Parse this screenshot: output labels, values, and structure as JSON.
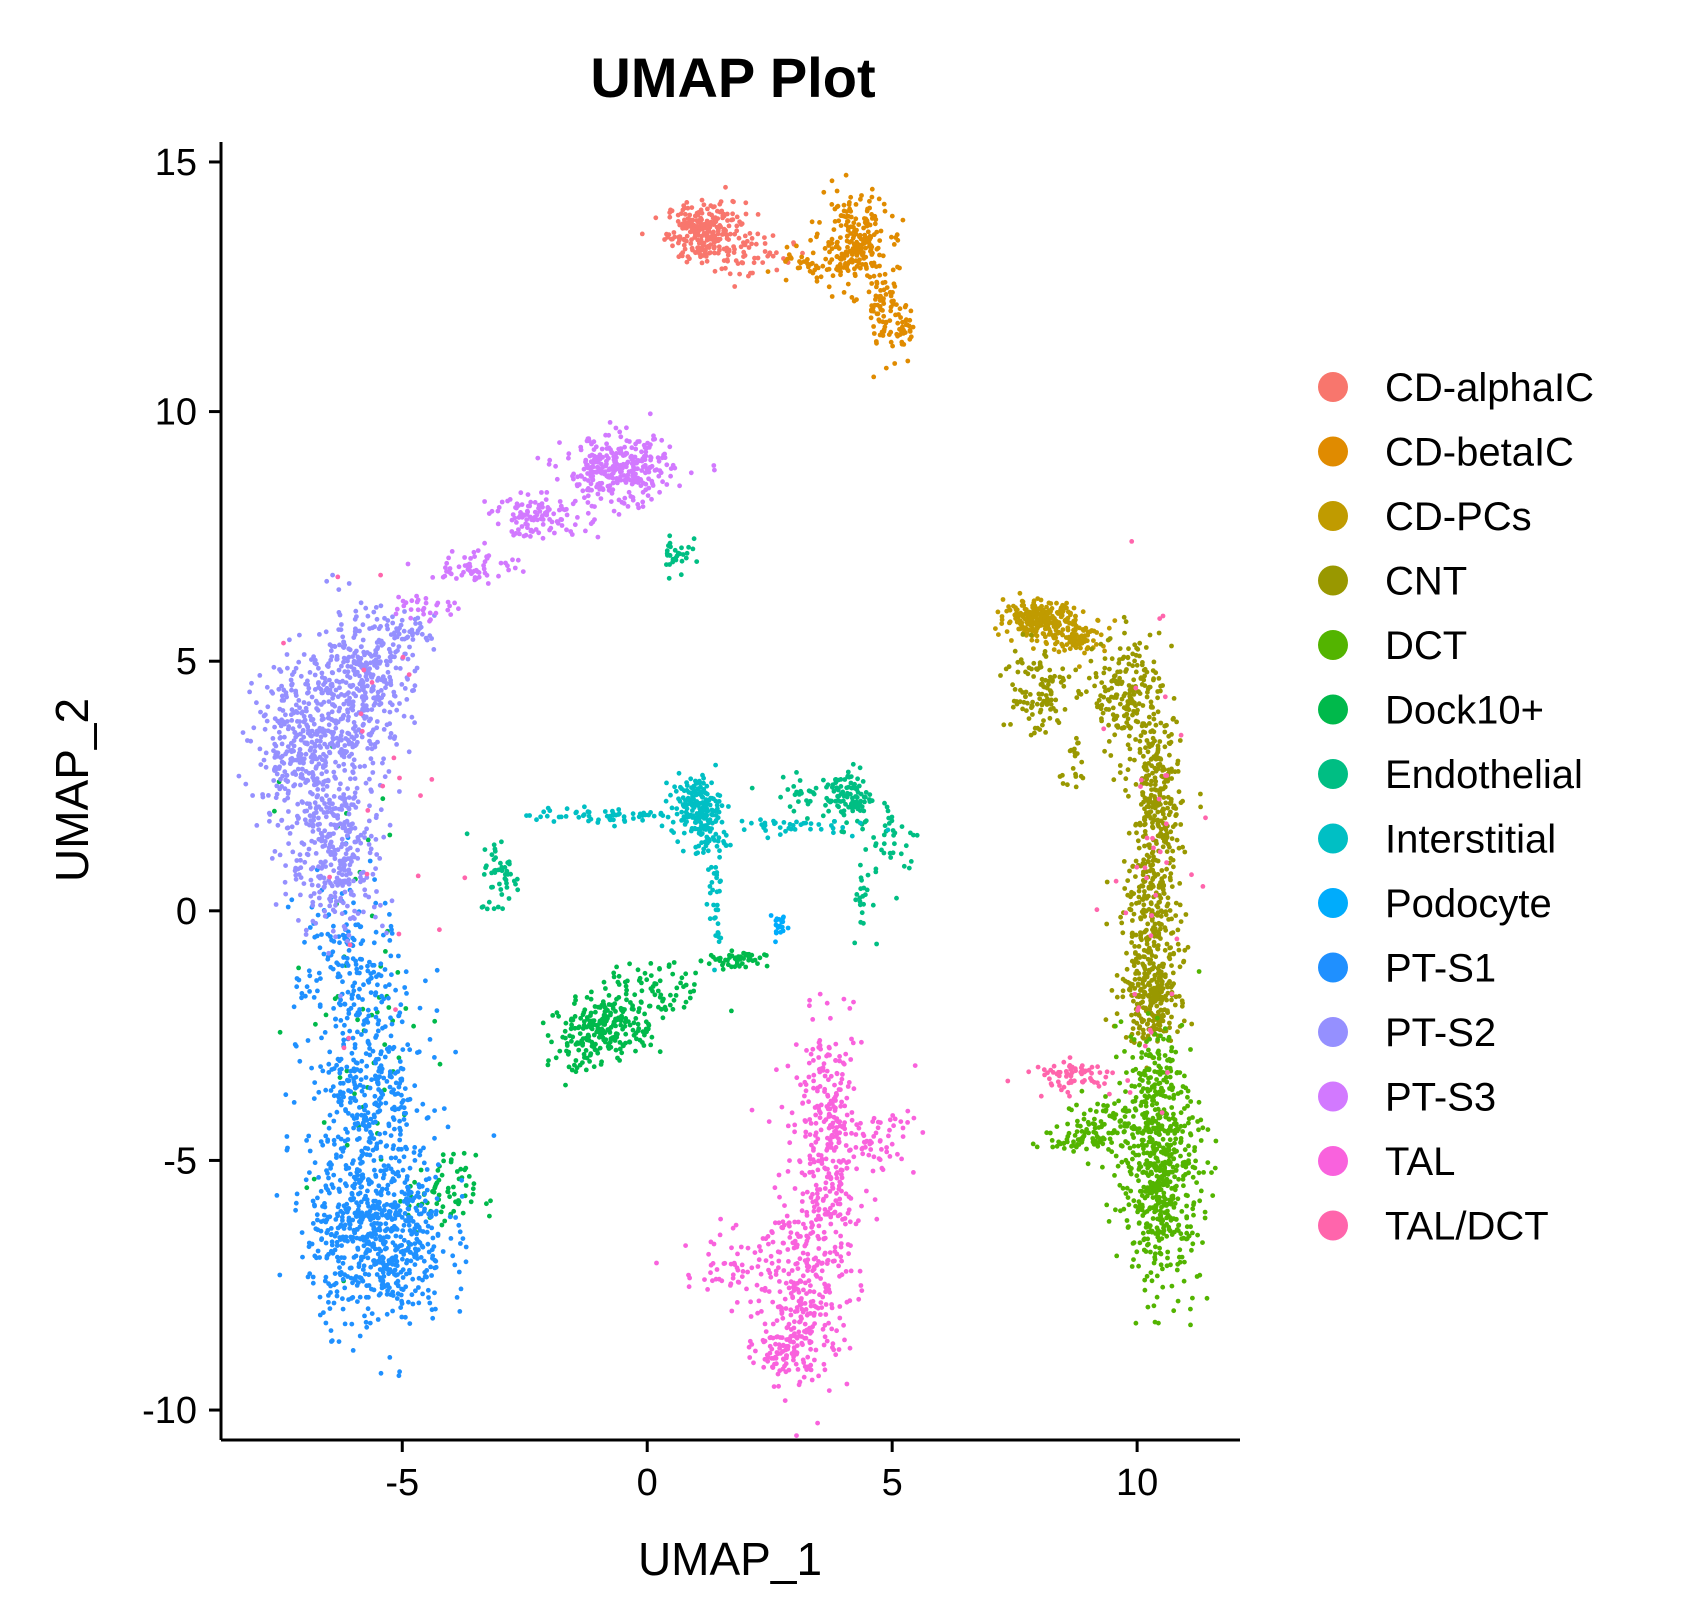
{
  "chart_data": {
    "type": "scatter",
    "title": "UMAP Plot",
    "xlabel": "UMAP_1",
    "ylabel": "UMAP_2",
    "xlim": [
      -8.7,
      12.1
    ],
    "ylim": [
      -10.6,
      15.4
    ],
    "x_ticks": [
      -5,
      0,
      5,
      10
    ],
    "y_ticks": [
      -10,
      -5,
      0,
      5,
      10,
      15
    ],
    "grid": false,
    "legend_position": "right",
    "series": [
      {
        "name": "CD-alphaIC",
        "color": "#F8766D",
        "clusters": [
          {
            "center": [
              1.2,
              13.6
            ],
            "spread": [
              0.4,
              0.3
            ],
            "count": 260
          },
          {
            "center": [
              2.2,
              13.1
            ],
            "spread": [
              0.4,
              0.25
            ],
            "count": 40
          }
        ]
      },
      {
        "name": "CD-betaIC",
        "color": "#E08B00",
        "clusters": [
          {
            "center": [
              4.2,
              13.4
            ],
            "spread": [
              0.35,
              0.45
            ],
            "count": 220
          },
          {
            "center": [
              4.8,
              12.2
            ],
            "spread": [
              0.15,
              0.5
            ],
            "count": 70
          },
          {
            "center": [
              5.2,
              11.6
            ],
            "spread": [
              0.15,
              0.25
            ],
            "count": 40
          },
          {
            "center": [
              3.3,
              12.9
            ],
            "spread": [
              0.45,
              0.15
            ],
            "count": 40
          }
        ]
      },
      {
        "name": "CD-PCs",
        "color": "#C09B00",
        "clusters": [
          {
            "center": [
              8.0,
              5.85
            ],
            "spread": [
              0.35,
              0.18
            ],
            "count": 240
          },
          {
            "center": [
              8.8,
              5.5
            ],
            "spread": [
              0.3,
              0.18
            ],
            "count": 90
          }
        ]
      },
      {
        "name": "CNT",
        "color": "#999800",
        "clusters": [
          {
            "center": [
              9.8,
              4.3
            ],
            "spread": [
              0.35,
              0.6
            ],
            "count": 200
          },
          {
            "center": [
              10.4,
              2.0
            ],
            "spread": [
              0.25,
              1.0
            ],
            "count": 300
          },
          {
            "center": [
              10.3,
              -0.5
            ],
            "spread": [
              0.3,
              0.9
            ],
            "count": 260
          },
          {
            "center": [
              10.3,
              -1.8
            ],
            "spread": [
              0.3,
              0.4
            ],
            "count": 180
          },
          {
            "center": [
              7.9,
              4.4
            ],
            "spread": [
              0.35,
              0.5
            ],
            "count": 110
          },
          {
            "center": [
              8.7,
              3.0
            ],
            "spread": [
              0.15,
              0.3
            ],
            "count": 20
          }
        ]
      },
      {
        "name": "DCT",
        "color": "#53B400",
        "clusters": [
          {
            "center": [
              10.5,
              -5.5
            ],
            "spread": [
              0.4,
              1.0
            ],
            "count": 500
          },
          {
            "center": [
              10.3,
              -3.6
            ],
            "spread": [
              0.3,
              0.6
            ],
            "count": 160
          },
          {
            "center": [
              9.4,
              -4.3
            ],
            "spread": [
              0.45,
              0.3
            ],
            "count": 90
          },
          {
            "center": [
              8.7,
              -4.6
            ],
            "spread": [
              0.35,
              0.1
            ],
            "count": 40
          }
        ]
      },
      {
        "name": "Dock10+",
        "color": "#00B94B",
        "clusters": [
          {
            "center": [
              -0.8,
              -2.3
            ],
            "spread": [
              0.45,
              0.3
            ],
            "count": 220
          },
          {
            "center": [
              0.2,
              -1.6
            ],
            "spread": [
              0.5,
              0.3
            ],
            "count": 70
          },
          {
            "center": [
              -1.4,
              -2.9
            ],
            "spread": [
              0.3,
              0.3
            ],
            "count": 40
          },
          {
            "center": [
              1.8,
              -1.0
            ],
            "spread": [
              0.3,
              0.1
            ],
            "count": 50
          },
          {
            "center": [
              -4.2,
              -5.7
            ],
            "spread": [
              0.35,
              0.4
            ],
            "count": 70
          },
          {
            "center": [
              -5.8,
              -2.0
            ],
            "spread": [
              0.7,
              2.5
            ],
            "count": 60
          }
        ]
      },
      {
        "name": "Endothelial",
        "color": "#00BE83",
        "clusters": [
          {
            "center": [
              4.1,
              2.3
            ],
            "spread": [
              0.25,
              0.3
            ],
            "count": 100
          },
          {
            "center": [
              5.0,
              1.4
            ],
            "spread": [
              0.3,
              0.45
            ],
            "count": 40
          },
          {
            "center": [
              4.4,
              0.2
            ],
            "spread": [
              0.1,
              0.4
            ],
            "count": 20
          },
          {
            "center": [
              -3.0,
              0.7
            ],
            "spread": [
              0.2,
              0.4
            ],
            "count": 50
          },
          {
            "center": [
              0.6,
              7.2
            ],
            "spread": [
              0.15,
              0.25
            ],
            "count": 30
          },
          {
            "center": [
              3.3,
              2.4
            ],
            "spread": [
              0.5,
              0.15
            ],
            "count": 30
          }
        ]
      },
      {
        "name": "Interstitial",
        "color": "#00BFC4",
        "clusters": [
          {
            "center": [
              1.0,
              2.1
            ],
            "spread": [
              0.25,
              0.3
            ],
            "count": 170
          },
          {
            "center": [
              1.2,
              1.5
            ],
            "spread": [
              0.2,
              0.3
            ],
            "count": 50
          },
          {
            "center": [
              -0.8,
              1.9
            ],
            "spread": [
              0.8,
              0.08
            ],
            "count": 60
          },
          {
            "center": [
              2.6,
              1.7
            ],
            "spread": [
              0.7,
              0.08
            ],
            "count": 40
          },
          {
            "center": [
              1.4,
              0.2
            ],
            "spread": [
              0.08,
              0.6
            ],
            "count": 30
          }
        ]
      },
      {
        "name": "Podocyte",
        "color": "#00ACFC",
        "clusters": [
          {
            "center": [
              2.7,
              -0.3
            ],
            "spread": [
              0.1,
              0.15
            ],
            "count": 20
          }
        ]
      },
      {
        "name": "PT-S1",
        "color": "#1F90FF",
        "clusters": [
          {
            "center": [
              -5.5,
              -6.5
            ],
            "spread": [
              0.7,
              0.9
            ],
            "count": 700
          },
          {
            "center": [
              -5.7,
              -3.5
            ],
            "spread": [
              0.6,
              1.1
            ],
            "count": 380
          },
          {
            "center": [
              -6.2,
              -1.0
            ],
            "spread": [
              0.5,
              0.9
            ],
            "count": 140
          }
        ]
      },
      {
        "name": "PT-S2",
        "color": "#9590FF",
        "clusters": [
          {
            "center": [
              -6.8,
              3.3
            ],
            "spread": [
              0.6,
              0.9
            ],
            "count": 500
          },
          {
            "center": [
              -5.8,
              4.6
            ],
            "spread": [
              0.5,
              0.7
            ],
            "count": 320
          },
          {
            "center": [
              -6.3,
              1.0
            ],
            "spread": [
              0.5,
              0.8
            ],
            "count": 260
          },
          {
            "center": [
              -4.9,
              5.6
            ],
            "spread": [
              0.3,
              0.15
            ],
            "count": 40
          }
        ]
      },
      {
        "name": "PT-S3",
        "color": "#D279FF",
        "clusters": [
          {
            "center": [
              -0.6,
              8.8
            ],
            "spread": [
              0.55,
              0.35
            ],
            "count": 320
          },
          {
            "center": [
              -2.2,
              7.9
            ],
            "spread": [
              0.5,
              0.2
            ],
            "count": 110
          },
          {
            "center": [
              -3.5,
              6.9
            ],
            "spread": [
              0.45,
              0.18
            ],
            "count": 60
          },
          {
            "center": [
              -4.5,
              6.1
            ],
            "spread": [
              0.35,
              0.15
            ],
            "count": 30
          }
        ]
      },
      {
        "name": "TAL",
        "color": "#F962DD",
        "clusters": [
          {
            "center": [
              3.7,
              -4.5
            ],
            "spread": [
              0.35,
              1.1
            ],
            "count": 300
          },
          {
            "center": [
              3.2,
              -7.5
            ],
            "spread": [
              0.45,
              1.1
            ],
            "count": 300
          },
          {
            "center": [
              2.8,
              -8.8
            ],
            "spread": [
              0.3,
              0.3
            ],
            "count": 80
          },
          {
            "center": [
              1.7,
              -7.2
            ],
            "spread": [
              0.5,
              0.4
            ],
            "count": 60
          },
          {
            "center": [
              4.8,
              -4.6
            ],
            "spread": [
              0.35,
              0.35
            ],
            "count": 50
          }
        ]
      },
      {
        "name": "TAL/DCT",
        "color": "#FF65AC",
        "clusters": [
          {
            "center": [
              8.7,
              -3.3
            ],
            "spread": [
              0.5,
              0.15
            ],
            "count": 70
          },
          {
            "center": [
              10.3,
              1.0
            ],
            "spread": [
              0.4,
              2.5
            ],
            "count": 40
          },
          {
            "center": [
              -5.5,
              2.0
            ],
            "spread": [
              0.8,
              2.5
            ],
            "count": 25
          }
        ]
      }
    ]
  }
}
